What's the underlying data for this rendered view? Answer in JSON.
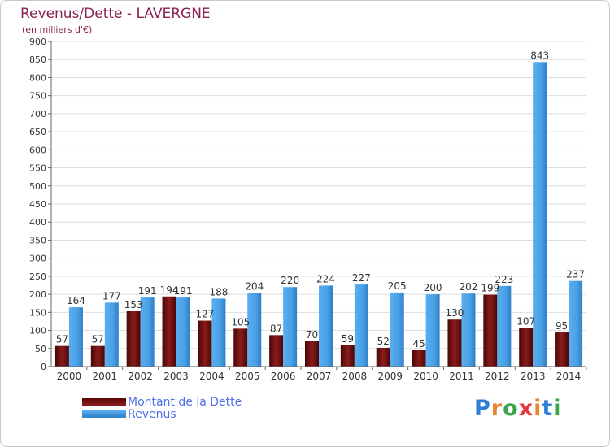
{
  "title": "Revenus/Dette - LAVERGNE",
  "subtitle": "(en milliers d'€)",
  "colors": {
    "debt": "#6b0d0d",
    "revenue": "#3d93d6",
    "grid": "#dddddd",
    "text": "#8b2252"
  },
  "legend": {
    "debt_label": "Montant de la Dette",
    "revenue_label": "Revenus"
  },
  "logo": {
    "text": "Proxiti"
  },
  "chart_data": {
    "type": "bar",
    "categories": [
      "2000",
      "2001",
      "2002",
      "2003",
      "2004",
      "2005",
      "2006",
      "2007",
      "2008",
      "2009",
      "2010",
      "2011",
      "2012",
      "2013",
      "2014"
    ],
    "series": [
      {
        "name": "Montant de la Dette",
        "values": [
          57,
          57,
          153,
          194,
          127,
          105,
          87,
          70,
          59,
          52,
          45,
          130,
          199,
          107,
          95
        ]
      },
      {
        "name": "Revenus",
        "values": [
          164,
          177,
          191,
          191,
          188,
          204,
          220,
          224,
          227,
          205,
          200,
          202,
          223,
          843,
          237
        ]
      }
    ],
    "ylim": [
      0,
      900
    ],
    "yticks": [
      0,
      50,
      100,
      150,
      200,
      250,
      300,
      350,
      400,
      450,
      500,
      550,
      600,
      650,
      700,
      750,
      800,
      850,
      900
    ],
    "grid": true,
    "legend_position": "bottom-left"
  }
}
